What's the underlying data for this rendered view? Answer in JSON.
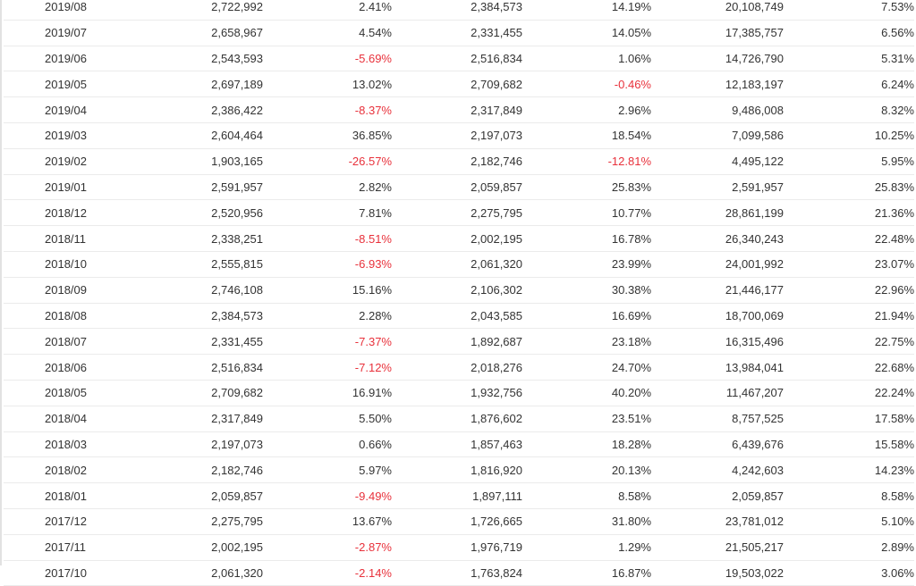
{
  "colors": {
    "negative": "#e8313b",
    "text": "#333333",
    "row_border": "#ebebeb"
  },
  "rows": [
    [
      "2019/08",
      "2,722,992",
      "2.41%",
      "2,384,573",
      "14.19%",
      "20,108,749",
      "7.53%"
    ],
    [
      "2019/07",
      "2,658,967",
      "4.54%",
      "2,331,455",
      "14.05%",
      "17,385,757",
      "6.56%"
    ],
    [
      "2019/06",
      "2,543,593",
      "-5.69%",
      "2,516,834",
      "1.06%",
      "14,726,790",
      "5.31%"
    ],
    [
      "2019/05",
      "2,697,189",
      "13.02%",
      "2,709,682",
      "-0.46%",
      "12,183,197",
      "6.24%"
    ],
    [
      "2019/04",
      "2,386,422",
      "-8.37%",
      "2,317,849",
      "2.96%",
      "9,486,008",
      "8.32%"
    ],
    [
      "2019/03",
      "2,604,464",
      "36.85%",
      "2,197,073",
      "18.54%",
      "7,099,586",
      "10.25%"
    ],
    [
      "2019/02",
      "1,903,165",
      "-26.57%",
      "2,182,746",
      "-12.81%",
      "4,495,122",
      "5.95%"
    ],
    [
      "2019/01",
      "2,591,957",
      "2.82%",
      "2,059,857",
      "25.83%",
      "2,591,957",
      "25.83%"
    ],
    [
      "2018/12",
      "2,520,956",
      "7.81%",
      "2,275,795",
      "10.77%",
      "28,861,199",
      "21.36%"
    ],
    [
      "2018/11",
      "2,338,251",
      "-8.51%",
      "2,002,195",
      "16.78%",
      "26,340,243",
      "22.48%"
    ],
    [
      "2018/10",
      "2,555,815",
      "-6.93%",
      "2,061,320",
      "23.99%",
      "24,001,992",
      "23.07%"
    ],
    [
      "2018/09",
      "2,746,108",
      "15.16%",
      "2,106,302",
      "30.38%",
      "21,446,177",
      "22.96%"
    ],
    [
      "2018/08",
      "2,384,573",
      "2.28%",
      "2,043,585",
      "16.69%",
      "18,700,069",
      "21.94%"
    ],
    [
      "2018/07",
      "2,331,455",
      "-7.37%",
      "1,892,687",
      "23.18%",
      "16,315,496",
      "22.75%"
    ],
    [
      "2018/06",
      "2,516,834",
      "-7.12%",
      "2,018,276",
      "24.70%",
      "13,984,041",
      "22.68%"
    ],
    [
      "2018/05",
      "2,709,682",
      "16.91%",
      "1,932,756",
      "40.20%",
      "11,467,207",
      "22.24%"
    ],
    [
      "2018/04",
      "2,317,849",
      "5.50%",
      "1,876,602",
      "23.51%",
      "8,757,525",
      "17.58%"
    ],
    [
      "2018/03",
      "2,197,073",
      "0.66%",
      "1,857,463",
      "18.28%",
      "6,439,676",
      "15.58%"
    ],
    [
      "2018/02",
      "2,182,746",
      "5.97%",
      "1,816,920",
      "20.13%",
      "4,242,603",
      "14.23%"
    ],
    [
      "2018/01",
      "2,059,857",
      "-9.49%",
      "1,897,111",
      "8.58%",
      "2,059,857",
      "8.58%"
    ],
    [
      "2017/12",
      "2,275,795",
      "13.67%",
      "1,726,665",
      "31.80%",
      "23,781,012",
      "5.10%"
    ],
    [
      "2017/11",
      "2,002,195",
      "-2.87%",
      "1,976,719",
      "1.29%",
      "21,505,217",
      "2.89%"
    ],
    [
      "2017/10",
      "2,061,320",
      "-2.14%",
      "1,763,824",
      "16.87%",
      "19,503,022",
      "3.06%"
    ]
  ]
}
